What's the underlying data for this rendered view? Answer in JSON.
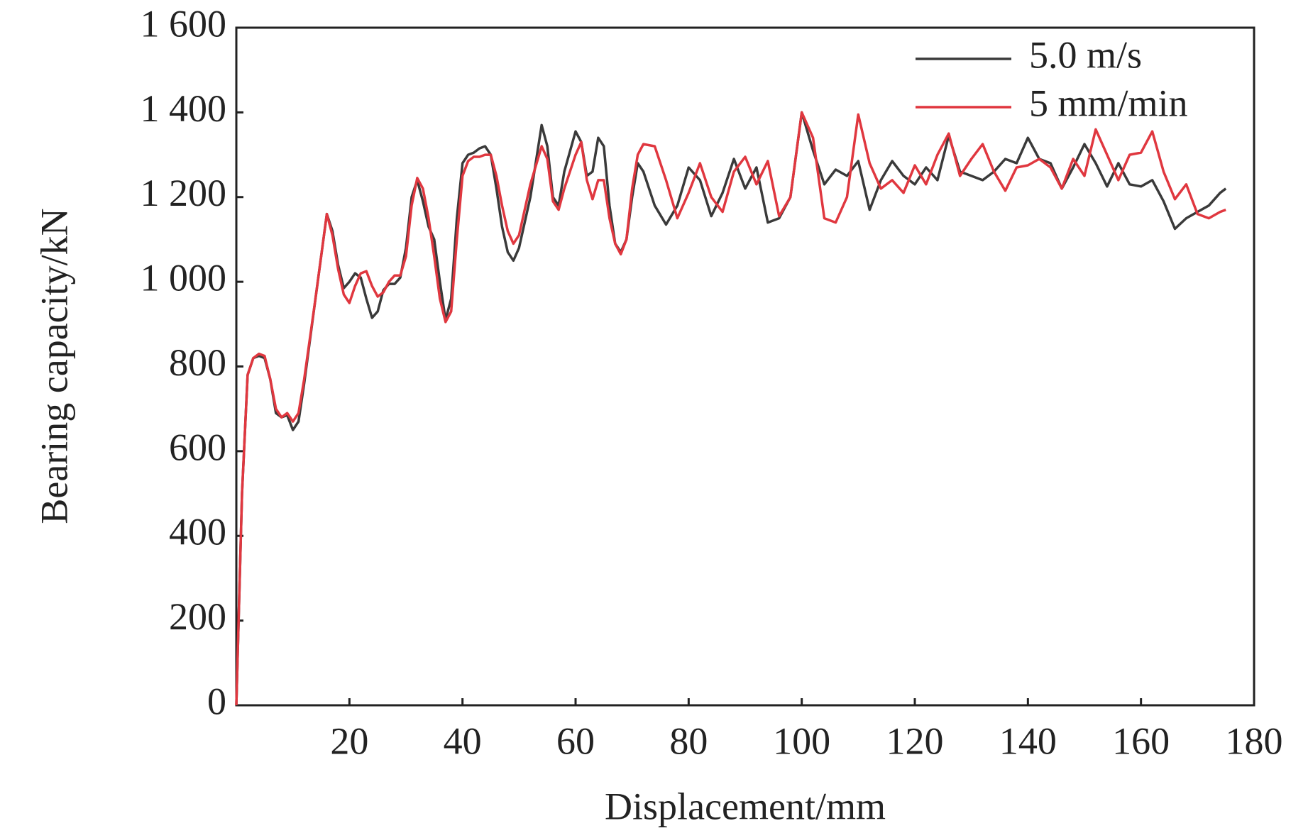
{
  "chart_data": {
    "type": "line",
    "x_label": "Displacement/mm",
    "y_label": "Bearing capacity/kN",
    "x": [
      0,
      1,
      2,
      3,
      4,
      5,
      6,
      7,
      8,
      9,
      10,
      11,
      12,
      14,
      16,
      17,
      18,
      19,
      20,
      21,
      22,
      23,
      24,
      25,
      26,
      27,
      28,
      29,
      30,
      31,
      32,
      33,
      34,
      35,
      36,
      37,
      38,
      39,
      40,
      41,
      42,
      43,
      44,
      45,
      46,
      47,
      48,
      49,
      50,
      52,
      54,
      55,
      56,
      57,
      58,
      60,
      61,
      62,
      63,
      64,
      65,
      66,
      67,
      68,
      69,
      70,
      71,
      72,
      74,
      76,
      78,
      80,
      82,
      84,
      86,
      88,
      90,
      92,
      94,
      96,
      98,
      100,
      102,
      104,
      106,
      108,
      110,
      112,
      114,
      116,
      118,
      120,
      122,
      124,
      126,
      128,
      130,
      132,
      134,
      136,
      138,
      140,
      142,
      144,
      146,
      148,
      150,
      152,
      154,
      156,
      158,
      160,
      162,
      164,
      166,
      168,
      170,
      172,
      174,
      175
    ],
    "series": [
      {
        "name": "5.0 m/s",
        "color": "#3a3a3a",
        "values": [
          0,
          500,
          780,
          820,
          825,
          820,
          770,
          690,
          680,
          685,
          650,
          670,
          760,
          960,
          1160,
          1120,
          1040,
          985,
          1000,
          1020,
          1010,
          960,
          915,
          930,
          980,
          995,
          995,
          1010,
          1080,
          1200,
          1240,
          1190,
          1130,
          1100,
          1000,
          910,
          960,
          1150,
          1280,
          1300,
          1305,
          1315,
          1320,
          1300,
          1220,
          1130,
          1070,
          1050,
          1080,
          1200,
          1370,
          1320,
          1200,
          1180,
          1260,
          1355,
          1330,
          1250,
          1260,
          1340,
          1320,
          1180,
          1090,
          1070,
          1100,
          1200,
          1280,
          1260,
          1180,
          1135,
          1180,
          1270,
          1240,
          1155,
          1210,
          1290,
          1220,
          1270,
          1140,
          1150,
          1200,
          1400,
          1310,
          1230,
          1265,
          1250,
          1285,
          1170,
          1240,
          1285,
          1250,
          1230,
          1270,
          1240,
          1345,
          1260,
          1250,
          1240,
          1260,
          1290,
          1280,
          1340,
          1290,
          1280,
          1220,
          1270,
          1325,
          1280,
          1225,
          1280,
          1230,
          1225,
          1240,
          1190,
          1125,
          1150,
          1165,
          1180,
          1210,
          1220
        ]
      },
      {
        "name": "5 mm/min",
        "color": "#e0373f",
        "values": [
          0,
          500,
          780,
          820,
          830,
          825,
          770,
          700,
          680,
          690,
          670,
          690,
          770,
          960,
          1160,
          1110,
          1030,
          970,
          950,
          990,
          1020,
          1025,
          990,
          965,
          975,
          1000,
          1015,
          1015,
          1060,
          1180,
          1245,
          1220,
          1150,
          1060,
          960,
          905,
          930,
          1100,
          1250,
          1285,
          1295,
          1295,
          1300,
          1300,
          1250,
          1180,
          1120,
          1090,
          1110,
          1230,
          1320,
          1290,
          1190,
          1170,
          1220,
          1300,
          1330,
          1240,
          1195,
          1240,
          1240,
          1150,
          1090,
          1065,
          1100,
          1220,
          1300,
          1325,
          1320,
          1240,
          1150,
          1210,
          1280,
          1200,
          1165,
          1260,
          1295,
          1230,
          1285,
          1155,
          1200,
          1400,
          1340,
          1150,
          1140,
          1200,
          1395,
          1280,
          1220,
          1240,
          1210,
          1275,
          1230,
          1300,
          1350,
          1250,
          1290,
          1325,
          1260,
          1215,
          1270,
          1275,
          1290,
          1270,
          1220,
          1290,
          1250,
          1360,
          1300,
          1240,
          1300,
          1305,
          1355,
          1260,
          1195,
          1230,
          1160,
          1150,
          1165,
          1170
        ]
      }
    ],
    "xlim": [
      0,
      180
    ],
    "xticks": [
      20,
      40,
      60,
      80,
      100,
      120,
      140,
      160,
      180
    ],
    "ylim": [
      0,
      1600
    ],
    "yticks": [
      0,
      200,
      400,
      600,
      800,
      {
        "value": 1000,
        "label": "1 000"
      },
      {
        "value": 1200,
        "label": "1 200"
      },
      {
        "value": 1400,
        "label": "1 400"
      },
      {
        "value": 1600,
        "label": "1 600"
      }
    ],
    "legend": "upper-right",
    "grid": false
  }
}
